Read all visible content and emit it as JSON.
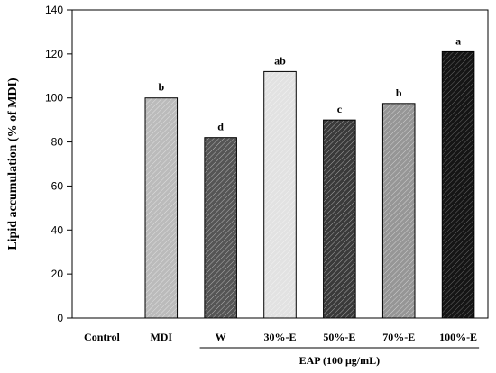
{
  "chart_data": {
    "type": "bar",
    "ylabel": "Lipid accumulation (% of MDI)",
    "ylim": [
      0,
      140
    ],
    "yticks": [
      0,
      20,
      40,
      60,
      80,
      100,
      120,
      140
    ],
    "grid": false,
    "categories": [
      "Control",
      "MDI",
      "W",
      "30%-E",
      "50%-E",
      "70%-E",
      "100%-E"
    ],
    "values": [
      0,
      100,
      82,
      112,
      90,
      97.5,
      121
    ],
    "significance": [
      "",
      "b",
      "d",
      "ab",
      "c",
      "b",
      "a"
    ],
    "bar_colors": [
      "#ffffff",
      "#bbbbbb",
      "#555555",
      "#e2e2e2",
      "#3a3a3a",
      "#969696",
      "#151515"
    ],
    "group_label": {
      "text": "EAP (100 μg/mL)",
      "first_category": "W",
      "last_category": "100%-E"
    }
  }
}
